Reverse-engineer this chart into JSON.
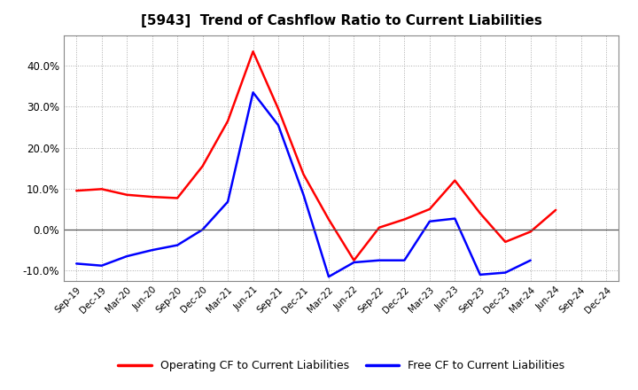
{
  "title": "[5943]  Trend of Cashflow Ratio to Current Liabilities",
  "x_labels": [
    "Sep-19",
    "Dec-19",
    "Mar-20",
    "Jun-20",
    "Sep-20",
    "Dec-20",
    "Mar-21",
    "Jun-21",
    "Sep-21",
    "Dec-21",
    "Mar-22",
    "Jun-22",
    "Sep-22",
    "Dec-22",
    "Mar-23",
    "Jun-23",
    "Sep-23",
    "Dec-23",
    "Mar-24",
    "Jun-24",
    "Sep-24",
    "Dec-24"
  ],
  "operating_cf": [
    0.095,
    0.099,
    0.085,
    0.08,
    0.077,
    0.155,
    0.265,
    0.435,
    0.295,
    0.135,
    0.025,
    -0.075,
    0.005,
    0.025,
    0.05,
    0.12,
    0.04,
    -0.03,
    -0.005,
    0.048,
    null,
    null
  ],
  "free_cf": [
    -0.083,
    -0.088,
    -0.065,
    -0.05,
    -0.038,
    0.0,
    0.068,
    0.335,
    0.255,
    0.085,
    -0.115,
    -0.08,
    -0.075,
    -0.075,
    0.02,
    0.027,
    -0.11,
    -0.105,
    -0.075,
    null,
    null,
    null
  ],
  "operating_cf_color": "#ff0000",
  "free_cf_color": "#0000ff",
  "ylim": [
    -0.125,
    0.475
  ],
  "yticks": [
    -0.1,
    0.0,
    0.1,
    0.2,
    0.3,
    0.4
  ],
  "background_color": "#ffffff",
  "grid_color": "#aaaaaa",
  "legend_op": "Operating CF to Current Liabilities",
  "legend_free": "Free CF to Current Liabilities"
}
